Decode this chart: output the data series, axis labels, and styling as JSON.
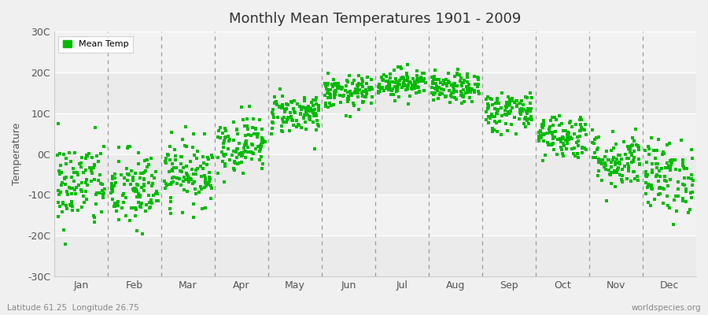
{
  "title": "Monthly Mean Temperatures 1901 - 2009",
  "ylabel": "Temperature",
  "footer_left": "Latitude 61.25  Longitude 26.75",
  "footer_right": "worldspecies.org",
  "legend_label": "Mean Temp",
  "dot_color": "#00bb00",
  "ylim": [
    -30,
    30
  ],
  "ytick_labels": [
    "-30C",
    "-20C",
    "-10C",
    "0C",
    "10C",
    "20C",
    "30C"
  ],
  "ytick_values": [
    -30,
    -20,
    -10,
    0,
    10,
    20,
    30
  ],
  "months": [
    "Jan",
    "Feb",
    "Mar",
    "Apr",
    "May",
    "Jun",
    "Jul",
    "Aug",
    "Sep",
    "Oct",
    "Nov",
    "Dec"
  ],
  "mean_temps": [
    -7.5,
    -9.0,
    -4.5,
    2.5,
    10.0,
    15.0,
    17.5,
    16.0,
    10.5,
    4.5,
    -1.5,
    -5.5
  ],
  "std_temps": [
    5.5,
    5.0,
    4.0,
    3.5,
    2.5,
    2.0,
    1.8,
    1.8,
    2.5,
    2.8,
    3.5,
    4.5
  ],
  "n_years": 109,
  "seed": 42,
  "fig_bg": "#f0f0f0",
  "plot_bg": "#f8f8f8",
  "band_colors": [
    "#f0f0f0",
    "#e8e8e8"
  ],
  "vline_color": "#999999",
  "hline_color": "#ffffff"
}
